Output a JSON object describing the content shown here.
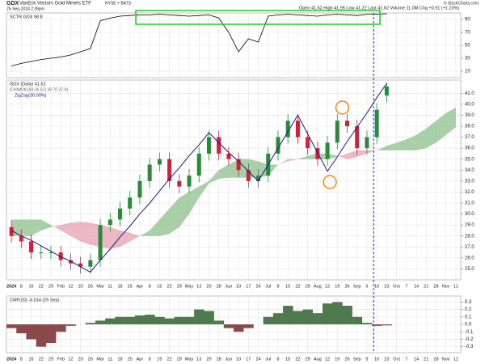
{
  "header": {
    "symbol": "GDX",
    "name": "VanEck Vectors Gold Miners ETF",
    "exchange": "NYSE + BATS",
    "timestamp": "25-Sep-2024 2:39pm",
    "quote": "Open 41.62  High 41.95  Low 41.22  Last 41.62  Volume 11.0M  Chg +0.51 (+1.23%)",
    "credit": "© StockCharts.com"
  },
  "chart_data": [
    {
      "type": "line",
      "legend": "SCTR GDX 98.8",
      "color": "#000000",
      "values": [
        18,
        22,
        25,
        28,
        30,
        32,
        35,
        40,
        45,
        88,
        92,
        95,
        96,
        97,
        97,
        98,
        97,
        96,
        95,
        96,
        97,
        92,
        70,
        40,
        60,
        55,
        95,
        97,
        98,
        97,
        96,
        95,
        97,
        98,
        97,
        96,
        98,
        98,
        98.8,
        null,
        null,
        null,
        null,
        null,
        null,
        null
      ],
      "ylim": [
        0,
        100
      ],
      "yticks": [
        10,
        30,
        50,
        70,
        90
      ],
      "grid": true
    },
    {
      "type": "candlestick",
      "legend": "GDX (Daily) 41.62",
      "cloud_legend": "ICHIMOKU(9,26,52) 39.70 37.91",
      "categories": [
        "2024",
        "8",
        "16",
        "22",
        "29",
        "Feb",
        "12",
        "20",
        "26",
        "Mar",
        "11",
        "18",
        "25",
        "Apr",
        "8",
        "15",
        "22",
        "29",
        "May",
        "13",
        "20",
        "28",
        "Jun",
        "10",
        "17",
        "24",
        "Jul",
        "8",
        "15",
        "22",
        "29",
        "Aug",
        "12",
        "19",
        "26",
        "Sep",
        "9",
        "16",
        "23",
        "Oct",
        "7",
        "14",
        "21",
        "28",
        "Nov",
        "11"
      ],
      "open": [
        28.8,
        28,
        27.5,
        26.5,
        26.5,
        26.5,
        25.8,
        25.5,
        25.2,
        25.8,
        29,
        29.5,
        30.5,
        31.5,
        33,
        34.5,
        35,
        33,
        32.5,
        33.5,
        35.5,
        37,
        35.5,
        35,
        34,
        33,
        33.5,
        35.5,
        37,
        38.5,
        37,
        36,
        35,
        36.5,
        38.5,
        38,
        36,
        37,
        40.8,
        null,
        null,
        null,
        null,
        null,
        null,
        null
      ],
      "high": [
        29.4,
        28.6,
        28.1,
        27.1,
        27.1,
        27.1,
        26.4,
        26.1,
        26.4,
        29.6,
        30.1,
        31.1,
        32.1,
        33.6,
        35.1,
        35.6,
        35.6,
        33.6,
        34.1,
        36.1,
        37.6,
        37.6,
        36.1,
        35.6,
        34.6,
        34.1,
        36.1,
        37.6,
        39.1,
        39.1,
        37.6,
        36.6,
        37.1,
        39.1,
        39.1,
        38.6,
        37.6,
        40.1,
        41.95,
        null,
        null,
        null,
        null,
        null,
        null,
        null
      ],
      "low": [
        27.4,
        26.9,
        25.9,
        25.9,
        25.9,
        25.2,
        24.9,
        24.6,
        24.6,
        25.2,
        28.4,
        28.9,
        29.9,
        30.9,
        32.4,
        33.9,
        32.4,
        31.9,
        31.9,
        32.9,
        34.9,
        34.9,
        34.4,
        33.4,
        32.4,
        32.4,
        32.9,
        34.9,
        36.4,
        36.4,
        35.4,
        34.4,
        34.4,
        35.9,
        37.4,
        35.4,
        35.4,
        36.4,
        40.2,
        null,
        null,
        null,
        null,
        null,
        null,
        null
      ],
      "close": [
        28,
        27.5,
        26.5,
        26.5,
        26.5,
        25.8,
        25.5,
        25.2,
        25.8,
        29,
        29.5,
        30.5,
        31.5,
        33,
        34.5,
        35,
        33,
        32.5,
        33.5,
        35.5,
        37,
        35.5,
        35,
        34,
        33,
        33.5,
        35.5,
        37,
        38.5,
        37,
        36,
        35,
        36.5,
        38.5,
        38,
        36,
        37,
        39.5,
        41.62,
        null,
        null,
        null,
        null,
        null,
        null,
        null
      ],
      "up_color": "#2a8a3a",
      "down_color": "#d0203a",
      "zigzag": {
        "name": "ZigZag(30.00%)",
        "color": "#1a1a8c",
        "values": [
          28.5,
          28.0,
          27.6,
          27.1,
          26.6,
          26.1,
          25.7,
          25.2,
          24.7,
          25.8,
          26.8,
          27.9,
          28.9,
          30.0,
          31.0,
          32.1,
          33.2,
          34.2,
          35.3,
          36.3,
          37.4,
          36.5,
          35.6,
          34.8,
          33.9,
          33.0,
          34.5,
          36.0,
          37.5,
          39.0,
          37.3,
          35.6,
          33.9,
          35.2,
          36.6,
          37.9,
          39.2,
          40.6,
          41.9,
          null,
          null,
          null,
          null,
          null,
          null,
          null
        ]
      },
      "cloud": {
        "span_a": [
          29.5,
          29.5,
          29.5,
          29.5,
          29,
          28.5,
          28,
          27.5,
          27.2,
          27,
          26.8,
          27,
          27.5,
          28,
          28.5,
          29.5,
          30.5,
          31.5,
          32,
          32.5,
          33,
          34,
          34.5,
          35,
          35,
          34.8,
          34.5,
          34.5,
          34.8,
          35,
          35.3,
          35.5,
          35.5,
          35.3,
          35,
          35.2,
          35.5,
          35.8,
          36.2,
          36.5,
          36.8,
          37.2,
          37.8,
          38.5,
          39.2,
          39.7
        ],
        "span_b": [
          28,
          28,
          28,
          28.5,
          28.8,
          29,
          29.2,
          29.3,
          29.2,
          29,
          28.8,
          28.5,
          28.3,
          28,
          28,
          28,
          28.2,
          28.8,
          30,
          31.5,
          32.8,
          33.2,
          33.3,
          33.3,
          33.3,
          33.3,
          33.5,
          34.5,
          35,
          35,
          35,
          35,
          35,
          35.2,
          35.5,
          35.8,
          35.8,
          35.8,
          35.8,
          35.8,
          35.8,
          35.8,
          36,
          36.5,
          37.2,
          37.9
        ],
        "up_color": "#8cc08c",
        "down_color": "#e6a0b0"
      },
      "ylim": [
        24,
        42.2
      ],
      "yticks": [
        {
          "value": 25,
          "label": "25.0"
        },
        {
          "value": 26,
          "label": "26.0"
        },
        {
          "value": 27,
          "label": "27.0"
        },
        {
          "value": 28,
          "label": "28.0"
        },
        {
          "value": 29,
          "label": "29.0"
        },
        {
          "value": 30,
          "label": "30.0"
        },
        {
          "value": 31,
          "label": "31.0"
        },
        {
          "value": 32,
          "label": "32.0"
        },
        {
          "value": 33,
          "label": "33.0"
        },
        {
          "value": 34,
          "label": "34.0"
        },
        {
          "value": 35,
          "label": "35.0"
        },
        {
          "value": 36,
          "label": "36.0"
        },
        {
          "value": 37,
          "label": "37.0"
        },
        {
          "value": 38,
          "label": "38.0"
        },
        {
          "value": 39,
          "label": "39.0"
        },
        {
          "value": 40,
          "label": "40.0"
        },
        {
          "value": 41,
          "label": "41.0"
        }
      ],
      "grid": true
    },
    {
      "type": "area",
      "legend": "CMF(20) -0.014 (25 Sep)",
      "up_color": "#4e7a4e",
      "down_color": "#8a4a4a",
      "values": [
        -0.05,
        -0.12,
        -0.2,
        -0.3,
        -0.25,
        -0.1,
        -0.02,
        0.0,
        0.02,
        0.05,
        0.08,
        0.1,
        0.1,
        0.12,
        0.13,
        0.1,
        0.08,
        0.1,
        0.1,
        0.2,
        0.18,
        0.05,
        -0.05,
        -0.1,
        -0.05,
        0.0,
        0.1,
        0.15,
        0.25,
        0.18,
        0.2,
        0.15,
        0.28,
        0.3,
        0.25,
        0.1,
        0.02,
        -0.02,
        -0.014,
        null,
        null,
        null,
        null,
        null,
        null,
        null
      ],
      "ylim": [
        -0.38,
        0.38
      ],
      "yticks": [
        {
          "value": 0.3,
          "label": "0.3"
        },
        {
          "value": 0.2,
          "label": "0.2"
        },
        {
          "value": 0.1,
          "label": "0.1"
        },
        {
          "value": 0,
          "label": "0.0"
        },
        {
          "value": -0.1,
          "label": "-0.1"
        },
        {
          "value": -0.2,
          "label": "-0.2"
        },
        {
          "value": -0.3,
          "label": "-0.3"
        }
      ],
      "grid": true
    }
  ]
}
